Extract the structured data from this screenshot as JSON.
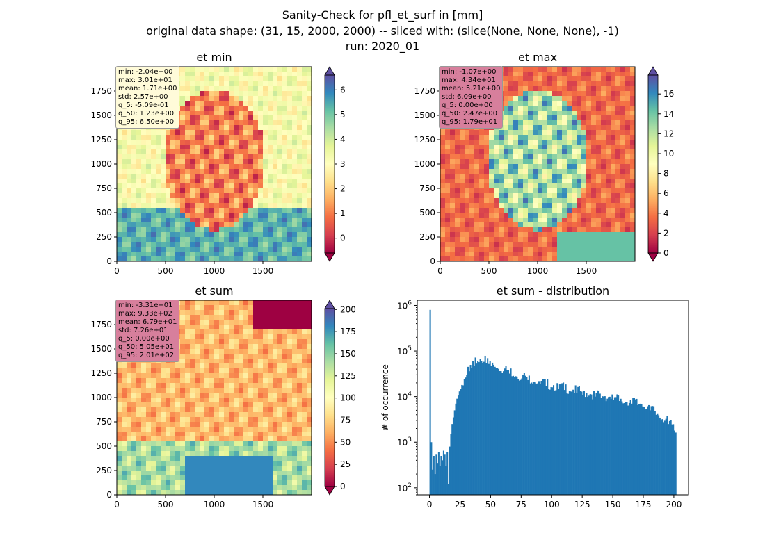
{
  "suptitle": {
    "line1": "Sanity-Check for pfl_et_surf in [mm]",
    "line2": "original data shape: (31, 15, 2000, 2000) -- sliced with: (slice(None, None, None), -1)",
    "line3": "run: 2020_01"
  },
  "colors": {
    "spectral": [
      "#9e0142",
      "#d53e4f",
      "#f46d43",
      "#fdae61",
      "#fee08b",
      "#ffffbf",
      "#e6f598",
      "#abdda4",
      "#66c2a5",
      "#3288bd",
      "#5e4fa2"
    ],
    "hist_bar": "#1f77b4"
  },
  "chart_data": [
    {
      "type": "heatmap",
      "title": "et min",
      "xticks": [
        "0",
        "500",
        "1000",
        "1500"
      ],
      "yticks": [
        "0",
        "250",
        "500",
        "750",
        "1000",
        "1250",
        "1500",
        "1750"
      ],
      "xlim": [
        0,
        2000
      ],
      "ylim": [
        0,
        2000
      ],
      "colorbar": {
        "vmin": -0.6,
        "vmax": 6.6,
        "ticks": [
          "0",
          "1",
          "2",
          "3",
          "4",
          "5",
          "6"
        ],
        "tick_values": [
          0,
          1,
          2,
          3,
          4,
          5,
          6
        ],
        "extend": "both"
      },
      "stats": [
        "min: -2.04e+00",
        "max: 3.01e+01",
        "mean: 1.71e+00",
        "std: 2.57e+00",
        "q_5: -5.09e-01",
        "q_50: 1.23e+00",
        "q_95: 6.50e+00"
      ],
      "stats_box_color": "#fffbd9"
    },
    {
      "type": "heatmap",
      "title": "et max",
      "xticks": [
        "0",
        "500",
        "1000",
        "1500"
      ],
      "yticks": [
        "0",
        "250",
        "500",
        "750",
        "1000",
        "1250",
        "1500",
        "1750"
      ],
      "xlim": [
        0,
        2000
      ],
      "ylim": [
        0,
        2000
      ],
      "colorbar": {
        "vmin": 0,
        "vmax": 17.9,
        "ticks": [
          "0",
          "2",
          "4",
          "6",
          "8",
          "10",
          "12",
          "14",
          "16"
        ],
        "tick_values": [
          0,
          2,
          4,
          6,
          8,
          10,
          12,
          14,
          16
        ],
        "extend": "both"
      },
      "stats": [
        "min: -1.07e+00",
        "max: 4.34e+01",
        "mean: 5.21e+00",
        "std: 6.09e+00",
        "q_5: 0.00e+00",
        "q_50: 2.47e+00",
        "q_95: 1.79e+01"
      ],
      "stats_box_color": "#d77f9c"
    },
    {
      "type": "heatmap",
      "title": "et sum",
      "xticks": [
        "0",
        "500",
        "1000",
        "1500"
      ],
      "yticks": [
        "0",
        "250",
        "500",
        "750",
        "1000",
        "1250",
        "1500",
        "1750"
      ],
      "xlim": [
        0,
        2000
      ],
      "ylim": [
        0,
        2000
      ],
      "colorbar": {
        "vmin": 0,
        "vmax": 201,
        "ticks": [
          "0",
          "25",
          "50",
          "75",
          "100",
          "125",
          "150",
          "175",
          "200"
        ],
        "tick_values": [
          0,
          25,
          50,
          75,
          100,
          125,
          150,
          175,
          200
        ],
        "extend": "both"
      },
      "stats": [
        "min: -3.31e+01",
        "max: 9.33e+02",
        "mean: 6.79e+01",
        "std: 7.26e+01",
        "q_5: 0.00e+00",
        "q_50: 5.05e+01",
        "q_95: 2.01e+02"
      ],
      "stats_box_color": "#d77f9c"
    },
    {
      "type": "bar",
      "title": "et sum - distribution",
      "ylabel": "# of occurrence",
      "xlabel": "",
      "yscale": "log",
      "xlim": [
        -10,
        212
      ],
      "ylim": [
        70,
        1300000
      ],
      "xticks": [
        "0",
        "25",
        "50",
        "75",
        "100",
        "125",
        "150",
        "175",
        "200"
      ],
      "xtick_values": [
        0,
        25,
        50,
        75,
        100,
        125,
        150,
        175,
        200
      ],
      "yticks": [
        "10^2",
        "10^3",
        "10^4",
        "10^5",
        "10^6"
      ],
      "ytick_values": [
        100,
        1000,
        10000,
        100000,
        1000000
      ],
      "bin_width": 1,
      "bins": [
        {
          "x": 0,
          "y": 800000
        },
        {
          "x": 1,
          "y": 1000
        },
        {
          "x": 2,
          "y": 250
        },
        {
          "x": 3,
          "y": 500
        },
        {
          "x": 4,
          "y": 200
        },
        {
          "x": 5,
          "y": 550
        },
        {
          "x": 6,
          "y": 350
        },
        {
          "x": 7,
          "y": 600
        },
        {
          "x": 8,
          "y": 300
        },
        {
          "x": 9,
          "y": 500
        },
        {
          "x": 10,
          "y": 400
        },
        {
          "x": 11,
          "y": 650
        },
        {
          "x": 12,
          "y": 550
        },
        {
          "x": 13,
          "y": 300
        },
        {
          "x": 14,
          "y": 600
        },
        {
          "x": 15,
          "y": 120
        },
        {
          "x": 16,
          "y": 800
        },
        {
          "x": 17,
          "y": 1500
        },
        {
          "x": 18,
          "y": 2500
        },
        {
          "x": 19,
          "y": 3500
        },
        {
          "x": 20,
          "y": 5000
        },
        {
          "x": 21,
          "y": 7000
        },
        {
          "x": 22,
          "y": 9000
        },
        {
          "x": 24,
          "y": 13000
        },
        {
          "x": 26,
          "y": 18000
        },
        {
          "x": 28,
          "y": 24000
        },
        {
          "x": 30,
          "y": 30000
        },
        {
          "x": 32,
          "y": 36000
        },
        {
          "x": 34,
          "y": 42000
        },
        {
          "x": 36,
          "y": 48000
        },
        {
          "x": 38,
          "y": 53000
        },
        {
          "x": 40,
          "y": 57000
        },
        {
          "x": 42,
          "y": 60000
        },
        {
          "x": 44,
          "y": 58000
        },
        {
          "x": 46,
          "y": 55000
        },
        {
          "x": 48,
          "y": 52000
        },
        {
          "x": 50,
          "y": 48000
        },
        {
          "x": 55,
          "y": 42000
        },
        {
          "x": 60,
          "y": 36000
        },
        {
          "x": 65,
          "y": 32000
        },
        {
          "x": 70,
          "y": 28000
        },
        {
          "x": 75,
          "y": 25000
        },
        {
          "x": 80,
          "y": 23000
        },
        {
          "x": 85,
          "y": 21000
        },
        {
          "x": 90,
          "y": 19000
        },
        {
          "x": 95,
          "y": 17000
        },
        {
          "x": 100,
          "y": 16000
        },
        {
          "x": 105,
          "y": 15000
        },
        {
          "x": 110,
          "y": 14000
        },
        {
          "x": 115,
          "y": 13000
        },
        {
          "x": 120,
          "y": 12000
        },
        {
          "x": 125,
          "y": 11000
        },
        {
          "x": 130,
          "y": 10500
        },
        {
          "x": 135,
          "y": 10000
        },
        {
          "x": 140,
          "y": 9500
        },
        {
          "x": 145,
          "y": 9000
        },
        {
          "x": 150,
          "y": 8500
        },
        {
          "x": 155,
          "y": 8000
        },
        {
          "x": 160,
          "y": 7500
        },
        {
          "x": 165,
          "y": 7000
        },
        {
          "x": 170,
          "y": 6500
        },
        {
          "x": 175,
          "y": 6000
        },
        {
          "x": 180,
          "y": 5000
        },
        {
          "x": 185,
          "y": 4000
        },
        {
          "x": 190,
          "y": 3200
        },
        {
          "x": 195,
          "y": 2500
        },
        {
          "x": 200,
          "y": 1800
        }
      ]
    }
  ]
}
